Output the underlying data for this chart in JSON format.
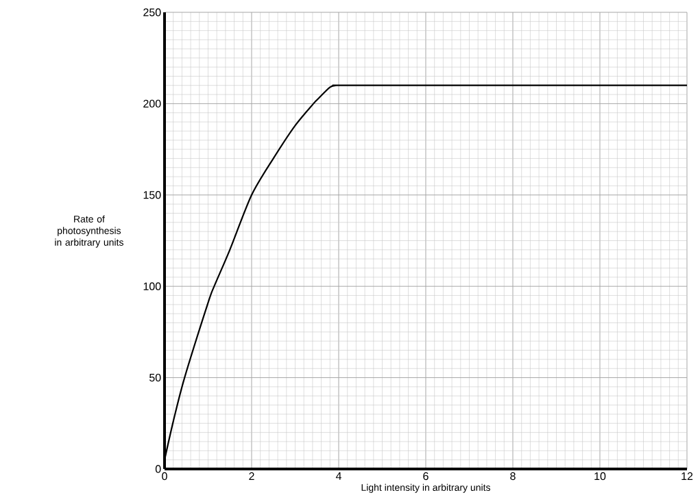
{
  "chart_data": {
    "type": "line",
    "xlabel": "Light intensity in arbitrary units",
    "ylabel": "Rate of photosynthesis in arbitrary units",
    "x": [
      0,
      0.2,
      0.46,
      1,
      1.14,
      1.5,
      2,
      2.5,
      3,
      3.42,
      3.5,
      3.8,
      3.95,
      4,
      6,
      8,
      10,
      12
    ],
    "values": [
      5,
      26,
      50,
      91,
      100,
      120,
      150,
      170,
      188,
      200,
      202,
      209,
      210,
      210,
      210,
      210,
      210,
      210
    ],
    "color": "#000000",
    "xlim": [
      0,
      12
    ],
    "ylim": [
      0,
      250
    ],
    "xticks": [
      0,
      2,
      4,
      6,
      8,
      10,
      12
    ],
    "yticks": [
      0,
      50,
      100,
      150,
      200,
      250
    ],
    "grid": true,
    "marker": "none",
    "line_style": "solid"
  }
}
